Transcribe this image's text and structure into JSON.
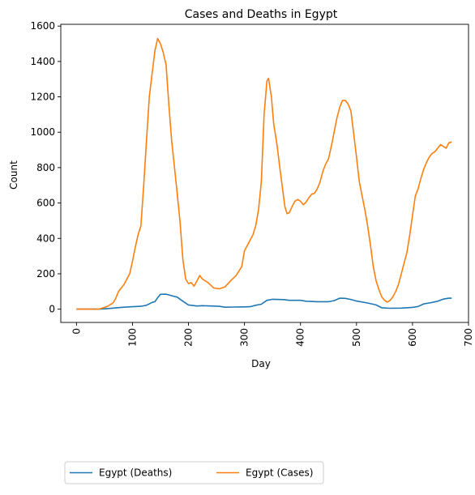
{
  "chart_data": {
    "type": "line",
    "title": "Cases and Deaths in Egypt",
    "xlabel": "Day",
    "ylabel": "Count",
    "xlim": [
      -28,
      700
    ],
    "ylim": [
      -75,
      1610
    ],
    "xticks": [
      0,
      100,
      200,
      300,
      400,
      500,
      600,
      700
    ],
    "yticks": [
      0,
      200,
      400,
      600,
      800,
      1000,
      1200,
      1400,
      1600
    ],
    "legend_position": "below-left",
    "series": [
      {
        "name": "Egypt (Deaths)",
        "color": "#1f77b4",
        "points": [
          [
            0,
            0
          ],
          [
            40,
            0
          ],
          [
            60,
            4
          ],
          [
            80,
            10
          ],
          [
            100,
            14
          ],
          [
            115,
            16
          ],
          [
            125,
            22
          ],
          [
            135,
            38
          ],
          [
            140,
            42
          ],
          [
            145,
            65
          ],
          [
            150,
            84
          ],
          [
            160,
            85
          ],
          [
            170,
            76
          ],
          [
            180,
            68
          ],
          [
            190,
            45
          ],
          [
            200,
            24
          ],
          [
            215,
            18
          ],
          [
            225,
            20
          ],
          [
            240,
            18
          ],
          [
            255,
            16
          ],
          [
            265,
            11
          ],
          [
            280,
            12
          ],
          [
            300,
            13
          ],
          [
            310,
            14
          ],
          [
            320,
            22
          ],
          [
            330,
            28
          ],
          [
            340,
            50
          ],
          [
            350,
            56
          ],
          [
            370,
            54
          ],
          [
            380,
            50
          ],
          [
            400,
            50
          ],
          [
            410,
            45
          ],
          [
            430,
            42
          ],
          [
            450,
            42
          ],
          [
            460,
            48
          ],
          [
            470,
            62
          ],
          [
            480,
            61
          ],
          [
            490,
            55
          ],
          [
            500,
            46
          ],
          [
            520,
            35
          ],
          [
            535,
            24
          ],
          [
            545,
            8
          ],
          [
            560,
            5
          ],
          [
            580,
            6
          ],
          [
            600,
            10
          ],
          [
            610,
            15
          ],
          [
            620,
            30
          ],
          [
            630,
            35
          ],
          [
            645,
            45
          ],
          [
            655,
            57
          ],
          [
            665,
            62
          ],
          [
            670,
            62
          ]
        ]
      },
      {
        "name": "Egypt (Cases)",
        "color": "#ff7f0e",
        "points": [
          [
            0,
            0
          ],
          [
            40,
            0
          ],
          [
            55,
            15
          ],
          [
            65,
            35
          ],
          [
            70,
            60
          ],
          [
            75,
            100
          ],
          [
            85,
            140
          ],
          [
            95,
            200
          ],
          [
            100,
            270
          ],
          [
            105,
            350
          ],
          [
            110,
            420
          ],
          [
            115,
            470
          ],
          [
            120,
            700
          ],
          [
            125,
            950
          ],
          [
            130,
            1200
          ],
          [
            135,
            1330
          ],
          [
            140,
            1460
          ],
          [
            145,
            1530
          ],
          [
            150,
            1500
          ],
          [
            155,
            1450
          ],
          [
            160,
            1380
          ],
          [
            165,
            1150
          ],
          [
            170,
            950
          ],
          [
            175,
            800
          ],
          [
            180,
            650
          ],
          [
            185,
            490
          ],
          [
            190,
            280
          ],
          [
            195,
            170
          ],
          [
            200,
            145
          ],
          [
            205,
            150
          ],
          [
            210,
            130
          ],
          [
            215,
            160
          ],
          [
            220,
            190
          ],
          [
            225,
            170
          ],
          [
            235,
            150
          ],
          [
            245,
            120
          ],
          [
            255,
            115
          ],
          [
            265,
            125
          ],
          [
            275,
            160
          ],
          [
            285,
            190
          ],
          [
            295,
            240
          ],
          [
            300,
            330
          ],
          [
            305,
            360
          ],
          [
            315,
            420
          ],
          [
            320,
            470
          ],
          [
            325,
            560
          ],
          [
            330,
            720
          ],
          [
            335,
            1100
          ],
          [
            340,
            1290
          ],
          [
            343,
            1305
          ],
          [
            348,
            1200
          ],
          [
            352,
            1050
          ],
          [
            358,
            930
          ],
          [
            363,
            800
          ],
          [
            368,
            680
          ],
          [
            372,
            580
          ],
          [
            376,
            540
          ],
          [
            380,
            545
          ],
          [
            385,
            580
          ],
          [
            390,
            610
          ],
          [
            395,
            620
          ],
          [
            400,
            610
          ],
          [
            405,
            590
          ],
          [
            410,
            605
          ],
          [
            415,
            630
          ],
          [
            420,
            650
          ],
          [
            425,
            655
          ],
          [
            430,
            680
          ],
          [
            435,
            720
          ],
          [
            440,
            780
          ],
          [
            445,
            820
          ],
          [
            450,
            850
          ],
          [
            455,
            920
          ],
          [
            460,
            1000
          ],
          [
            465,
            1080
          ],
          [
            470,
            1140
          ],
          [
            475,
            1180
          ],
          [
            480,
            1180
          ],
          [
            485,
            1160
          ],
          [
            490,
            1120
          ],
          [
            495,
            990
          ],
          [
            500,
            860
          ],
          [
            505,
            720
          ],
          [
            510,
            640
          ],
          [
            515,
            560
          ],
          [
            520,
            470
          ],
          [
            525,
            360
          ],
          [
            530,
            240
          ],
          [
            535,
            160
          ],
          [
            540,
            110
          ],
          [
            545,
            70
          ],
          [
            550,
            50
          ],
          [
            555,
            40
          ],
          [
            560,
            50
          ],
          [
            565,
            70
          ],
          [
            570,
            100
          ],
          [
            575,
            140
          ],
          [
            580,
            200
          ],
          [
            585,
            260
          ],
          [
            590,
            320
          ],
          [
            595,
            420
          ],
          [
            600,
            530
          ],
          [
            605,
            640
          ],
          [
            610,
            680
          ],
          [
            615,
            740
          ],
          [
            620,
            790
          ],
          [
            625,
            830
          ],
          [
            630,
            860
          ],
          [
            635,
            880
          ],
          [
            640,
            890
          ],
          [
            645,
            910
          ],
          [
            650,
            930
          ],
          [
            655,
            920
          ],
          [
            660,
            910
          ],
          [
            665,
            940
          ],
          [
            670,
            945
          ]
        ]
      }
    ]
  }
}
